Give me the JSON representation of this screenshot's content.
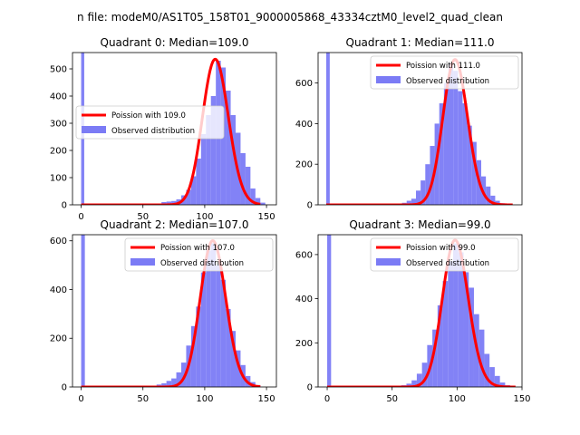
{
  "figure": {
    "title": "n file: modeM0/AS1T05_158T01_9000005868_43334cztM0_level2_quad_clean"
  },
  "colors": {
    "hist": "#7b7bf5",
    "fit": "#ff0000",
    "axis": "#000000"
  },
  "chart_data": [
    {
      "type": "bar",
      "title": "Quadrant 0: Median=109.0",
      "xlim": [
        -7,
        158
      ],
      "ylim": [
        0,
        560
      ],
      "xticks": [
        0,
        50,
        100,
        150
      ],
      "yticks": [
        0,
        100,
        200,
        300,
        400,
        500
      ],
      "legend_position": "center-left",
      "series": [
        {
          "name": "Poission with 109.0",
          "kind": "line",
          "lambda": 109,
          "peak": 535,
          "x_range": [
            0,
            145
          ]
        },
        {
          "name": "Observed distribution",
          "kind": "histogram",
          "bins": [
            [
              0,
              2.5,
              560
            ],
            [
              2.5,
              5,
              5
            ],
            [
              57,
              61,
              3
            ],
            [
              61,
              65,
              5
            ],
            [
              65,
              69,
              10
            ],
            [
              69,
              73,
              12
            ],
            [
              73,
              77,
              14
            ],
            [
              77,
              81,
              20
            ],
            [
              81,
              85,
              35
            ],
            [
              85,
              89,
              55
            ],
            [
              89,
              93,
              105
            ],
            [
              93,
              97,
              170
            ],
            [
              97,
              101,
              260
            ],
            [
              101,
              105,
              330
            ],
            [
              105,
              109,
              400
            ],
            [
              109,
              113,
              530
            ],
            [
              113,
              117,
              505
            ],
            [
              117,
              121,
              420
            ],
            [
              121,
              125,
              330
            ],
            [
              125,
              129,
              265
            ],
            [
              129,
              133,
              190
            ],
            [
              133,
              137,
              140
            ],
            [
              137,
              141,
              60
            ],
            [
              141,
              145,
              25
            ],
            [
              145,
              149,
              8
            ]
          ]
        }
      ]
    },
    {
      "type": "bar",
      "title": "Quadrant 1: Median=111.0",
      "xlim": [
        -7,
        168
      ],
      "ylim": [
        0,
        750
      ],
      "xticks": [],
      "yticks": [
        0,
        200,
        400,
        600
      ],
      "legend_position": "upper-right",
      "series": [
        {
          "name": "Poission with 111.0",
          "kind": "line",
          "lambda": 111,
          "peak": 715,
          "x_range": [
            0,
            160
          ]
        },
        {
          "name": "Observed distribution",
          "kind": "histogram",
          "bins": [
            [
              0,
              3,
              750
            ],
            [
              57,
              61,
              3
            ],
            [
              61,
              65,
              5
            ],
            [
              65,
              69,
              10
            ],
            [
              69,
              73,
              20
            ],
            [
              73,
              77,
              30
            ],
            [
              77,
              81,
              70
            ],
            [
              81,
              85,
              120
            ],
            [
              85,
              89,
              200
            ],
            [
              89,
              93,
              290
            ],
            [
              93,
              97,
              400
            ],
            [
              97,
              101,
              500
            ],
            [
              101,
              105,
              600
            ],
            [
              105,
              109,
              700
            ],
            [
              109,
              113,
              660
            ],
            [
              113,
              117,
              560
            ],
            [
              117,
              121,
              500
            ],
            [
              121,
              125,
              390
            ],
            [
              125,
              129,
              310
            ],
            [
              129,
              133,
              220
            ],
            [
              133,
              137,
              140
            ],
            [
              137,
              141,
              90
            ],
            [
              141,
              145,
              45
            ],
            [
              145,
              149,
              20
            ],
            [
              149,
              153,
              8
            ]
          ]
        }
      ]
    },
    {
      "type": "bar",
      "title": "Quadrant 2: Median=107.0",
      "xlim": [
        -7,
        158
      ],
      "ylim": [
        0,
        625
      ],
      "xticks": [
        0,
        50,
        100,
        150
      ],
      "yticks": [
        0,
        200,
        400,
        600
      ],
      "legend_position": "upper-right",
      "series": [
        {
          "name": "Poission with 107.0",
          "kind": "line",
          "lambda": 107,
          "peak": 600,
          "x_range": [
            0,
            145
          ]
        },
        {
          "name": "Observed distribution",
          "kind": "histogram",
          "bins": [
            [
              0,
              3,
              625
            ],
            [
              57,
              61,
              5
            ],
            [
              61,
              65,
              10
            ],
            [
              65,
              69,
              15
            ],
            [
              69,
              73,
              25
            ],
            [
              73,
              77,
              35
            ],
            [
              77,
              81,
              60
            ],
            [
              81,
              85,
              100
            ],
            [
              85,
              89,
              170
            ],
            [
              89,
              93,
              250
            ],
            [
              93,
              97,
              330
            ],
            [
              97,
              101,
              470
            ],
            [
              101,
              105,
              560
            ],
            [
              105,
              109,
              590
            ],
            [
              109,
              113,
              500
            ],
            [
              113,
              117,
              440
            ],
            [
              117,
              121,
              320
            ],
            [
              121,
              125,
              230
            ],
            [
              125,
              129,
              150
            ],
            [
              129,
              133,
              90
            ],
            [
              133,
              137,
              45
            ],
            [
              137,
              141,
              20
            ],
            [
              141,
              145,
              8
            ]
          ]
        }
      ]
    },
    {
      "type": "bar",
      "title": "Quadrant 3: Median=99.0",
      "xlim": [
        -7,
        150
      ],
      "ylim": [
        0,
        690
      ],
      "xticks": [
        0,
        50,
        100,
        150
      ],
      "yticks": [
        0,
        200,
        400,
        600
      ],
      "legend_position": "upper-right",
      "series": [
        {
          "name": "Poission with 99.0",
          "kind": "line",
          "lambda": 99,
          "peak": 665,
          "x_range": [
            0,
            145
          ]
        },
        {
          "name": "Observed distribution",
          "kind": "histogram",
          "bins": [
            [
              0,
              3,
              690
            ],
            [
              53,
              57,
              5
            ],
            [
              57,
              61,
              8
            ],
            [
              61,
              65,
              15
            ],
            [
              65,
              69,
              30
            ],
            [
              69,
              73,
              60
            ],
            [
              73,
              77,
              110
            ],
            [
              77,
              81,
              190
            ],
            [
              81,
              85,
              260
            ],
            [
              85,
              89,
              370
            ],
            [
              89,
              93,
              480
            ],
            [
              93,
              97,
              570
            ],
            [
              97,
              101,
              650
            ],
            [
              101,
              105,
              610
            ],
            [
              105,
              109,
              520
            ],
            [
              109,
              113,
              450
            ],
            [
              113,
              117,
              330
            ],
            [
              117,
              121,
              260
            ],
            [
              121,
              125,
              150
            ],
            [
              125,
              129,
              90
            ],
            [
              129,
              133,
              50
            ],
            [
              133,
              137,
              20
            ],
            [
              137,
              141,
              8
            ]
          ]
        }
      ]
    }
  ]
}
